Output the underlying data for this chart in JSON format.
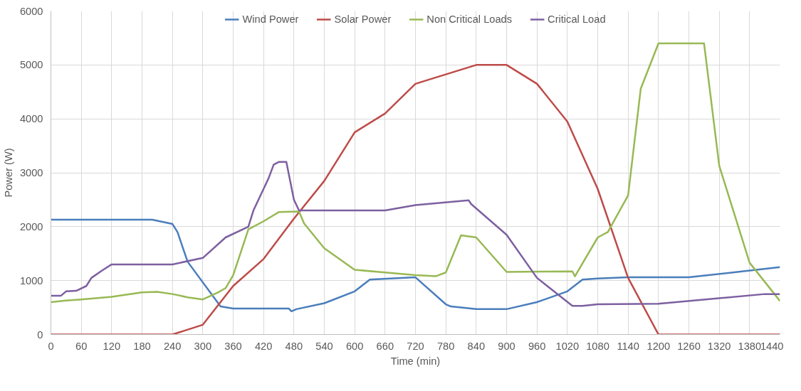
{
  "chart_data": {
    "type": "line",
    "xlabel": "Time (min)",
    "ylabel": "Power (W)",
    "xlim": [
      0,
      1440
    ],
    "ylim": [
      0,
      6000
    ],
    "xticks": [
      0,
      60,
      120,
      180,
      240,
      300,
      360,
      420,
      480,
      540,
      600,
      660,
      720,
      780,
      840,
      900,
      960,
      1020,
      1080,
      1140,
      1200,
      1260,
      1320,
      1380,
      1440
    ],
    "yticks": [
      0,
      1000,
      2000,
      3000,
      4000,
      5000,
      6000
    ],
    "grid": true,
    "legend": "top",
    "marker": "none",
    "line_style": "solid",
    "series": [
      {
        "name": "Wind Power",
        "color": "#4a7ebb",
        "x": [
          0,
          200,
          240,
          250,
          270,
          335,
          360,
          470,
          475,
          485,
          540,
          600,
          630,
          720,
          780,
          790,
          840,
          900,
          960,
          1020,
          1050,
          1080,
          1140,
          1260,
          1440
        ],
        "values": [
          2130,
          2130,
          2050,
          1900,
          1350,
          520,
          480,
          480,
          430,
          470,
          580,
          800,
          1020,
          1060,
          560,
          520,
          470,
          470,
          600,
          800,
          1020,
          1040,
          1060,
          1060,
          1250
        ]
      },
      {
        "name": "Solar Power",
        "color": "#be4b48",
        "x": [
          0,
          240,
          300,
          360,
          420,
          480,
          540,
          600,
          660,
          720,
          840,
          900,
          960,
          1020,
          1080,
          1140,
          1200,
          1440
        ],
        "values": [
          0,
          0,
          180,
          900,
          1400,
          2150,
          2850,
          3750,
          4100,
          4650,
          5000,
          5000,
          4650,
          3950,
          2700,
          1050,
          0,
          0
        ]
      },
      {
        "name": "Non Critical Loads",
        "color": "#98b954",
        "x": [
          0,
          30,
          60,
          120,
          180,
          210,
          240,
          270,
          300,
          330,
          345,
          360,
          390,
          420,
          450,
          490,
          500,
          540,
          600,
          660,
          720,
          760,
          780,
          810,
          840,
          900,
          1030,
          1035,
          1080,
          1100,
          1140,
          1165,
          1200,
          1290,
          1320,
          1380,
          1440
        ],
        "values": [
          600,
          630,
          650,
          700,
          780,
          790,
          750,
          690,
          650,
          780,
          860,
          1100,
          1950,
          2100,
          2270,
          2280,
          2060,
          1600,
          1200,
          1150,
          1100,
          1080,
          1150,
          1840,
          1800,
          1160,
          1170,
          1080,
          1800,
          1900,
          2580,
          4560,
          5400,
          5400,
          3130,
          1330,
          620
        ]
      },
      {
        "name": "Critical Load",
        "color": "#7d60a0",
        "x": [
          0,
          20,
          30,
          50,
          70,
          80,
          100,
          120,
          240,
          300,
          345,
          390,
          400,
          420,
          430,
          440,
          450,
          465,
          480,
          490,
          600,
          660,
          720,
          825,
          830,
          900,
          960,
          1030,
          1050,
          1080,
          1200,
          1410,
          1440
        ],
        "values": [
          720,
          720,
          800,
          810,
          900,
          1050,
          1180,
          1300,
          1300,
          1420,
          1800,
          2000,
          2300,
          2700,
          2900,
          3150,
          3200,
          3200,
          2500,
          2300,
          2300,
          2300,
          2400,
          2490,
          2420,
          1850,
          1050,
          530,
          530,
          560,
          570,
          750,
          750
        ]
      }
    ]
  }
}
